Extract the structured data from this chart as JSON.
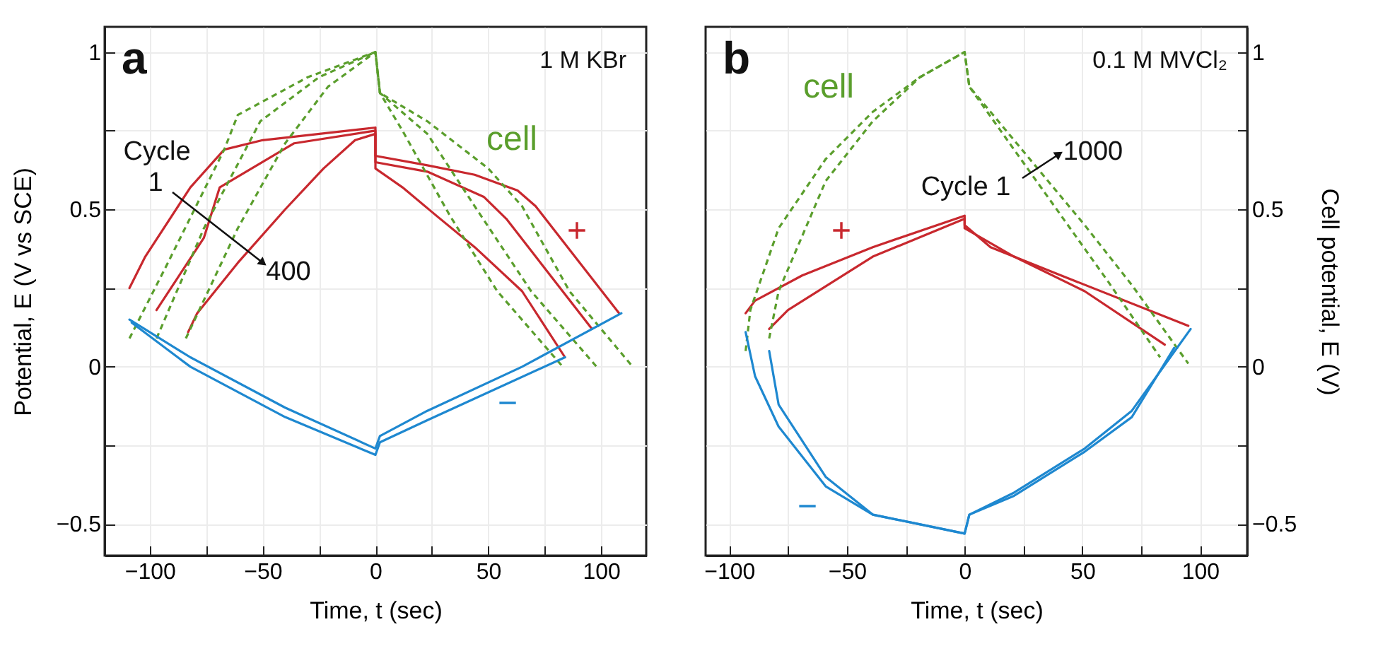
{
  "chart_data": [
    {
      "type": "line",
      "title": "a",
      "xlabel": "Time, t (sec)",
      "ylabel": "Potential, E (V vs SCE)",
      "xlim": [
        -120,
        120
      ],
      "xticks": [
        -100,
        {
          "value": -75,
          "label": null
        },
        -50,
        {
          "value": -25,
          "label": null
        },
        0,
        {
          "value": 25,
          "label": null
        },
        50,
        {
          "value": 75,
          "label": null
        },
        100
      ],
      "ylim": [
        -0.6,
        1.08
      ],
      "yticks": [
        -0.5,
        {
          "value": -0.25,
          "label": null
        },
        0,
        {
          "value": 0.25,
          "label": null
        },
        0.5,
        {
          "value": 0.75,
          "label": null
        },
        1
      ],
      "grid": true,
      "series": [
        {
          "name": "+",
          "color": "#c8282e",
          "x": [
            -109,
            -102,
            -82,
            -67,
            -50,
            0,
            0,
            23,
            44,
            63,
            71,
            108
          ],
          "values": [
            0.25,
            0.35,
            0.57,
            0.69,
            0.72,
            0.76,
            0.67,
            0.64,
            0.61,
            0.56,
            0.51,
            0.17
          ]
        },
        {
          "color": "#c8282e",
          "x": [
            -97,
            -76,
            -69,
            -36,
            0,
            0,
            23,
            48,
            58,
            96
          ],
          "values": [
            0.18,
            0.41,
            0.57,
            0.71,
            0.75,
            0.65,
            0.62,
            0.54,
            0.47,
            0.12
          ]
        },
        {
          "color": "#c8282e",
          "x": [
            -83,
            -79,
            -61,
            -40,
            -23,
            -9,
            0,
            0,
            12,
            27,
            44,
            65,
            84
          ],
          "values": [
            0.11,
            0.17,
            0.33,
            0.5,
            0.63,
            0.72,
            0.74,
            0.63,
            0.57,
            0.48,
            0.38,
            0.24,
            0.03
          ]
        },
        {
          "name": "cell",
          "color": "#5a9e2c",
          "line_style": "dashed",
          "x": [
            -109,
            -92,
            -67,
            -61,
            -30,
            0,
            2,
            23,
            50,
            65,
            86,
            114
          ],
          "values": [
            0.09,
            0.33,
            0.69,
            0.8,
            0.92,
            1.0,
            0.87,
            0.78,
            0.63,
            0.51,
            0.24,
            0.0
          ]
        },
        {
          "color": "#5a9e2c",
          "line_style": "dashed",
          "x": [
            -97,
            -76,
            -51,
            -25,
            0,
            2,
            23,
            44,
            69,
            98
          ],
          "values": [
            0.09,
            0.44,
            0.78,
            0.92,
            1.0,
            0.87,
            0.74,
            0.51,
            0.24,
            0.0
          ]
        },
        {
          "color": "#5a9e2c",
          "line_style": "dashed",
          "x": [
            -84,
            -61,
            -40,
            -21,
            0,
            2,
            12,
            33,
            54,
            83
          ],
          "values": [
            0.09,
            0.44,
            0.71,
            0.89,
            1.0,
            0.87,
            0.75,
            0.48,
            0.24,
            0.0
          ]
        },
        {
          "name": "−",
          "color": "#1e88d0",
          "x": [
            -109,
            -82,
            -40,
            0,
            2,
            23,
            65,
            109
          ],
          "values": [
            0.15,
            0.03,
            -0.13,
            -0.26,
            -0.22,
            -0.14,
            0.0,
            0.17
          ]
        },
        {
          "color": "#1e88d0",
          "x": [
            -108,
            -82,
            -40,
            0,
            2,
            23,
            84
          ],
          "values": [
            0.14,
            0.0,
            -0.16,
            -0.28,
            -0.24,
            -0.17,
            0.03
          ]
        }
      ],
      "annotations": [
        "1 M KBr",
        "Cycle",
        "1",
        "400"
      ]
    },
    {
      "type": "line",
      "title": "b",
      "xlabel": "Time, t (sec)",
      "y2label": "Cell potential, E (V)",
      "xlim": [
        -110,
        120
      ],
      "xticks": [
        -100,
        {
          "value": -75,
          "label": null
        },
        -50,
        {
          "value": -25,
          "label": null
        },
        0,
        {
          "value": 25,
          "label": null
        },
        50,
        {
          "value": 75,
          "label": null
        },
        100
      ],
      "y2lim": [
        -0.6,
        1.08
      ],
      "y2ticks": [
        -0.5,
        {
          "value": -0.25,
          "label": null
        },
        0,
        {
          "value": 0.25,
          "label": null
        },
        0.5,
        {
          "value": 0.75,
          "label": null
        },
        1
      ],
      "grid": true,
      "series": [
        {
          "name": "+",
          "axis": "y2",
          "color": "#c8282e",
          "x": [
            -93,
            -89,
            -69,
            -39,
            0,
            0,
            11,
            41,
            95
          ],
          "values": [
            0.17,
            0.21,
            0.29,
            0.38,
            0.48,
            0.45,
            0.38,
            0.29,
            0.13
          ]
        },
        {
          "axis": "y2",
          "color": "#c8282e",
          "x": [
            -83,
            -75,
            -39,
            0,
            0,
            21,
            51,
            85
          ],
          "values": [
            0.12,
            0.18,
            0.35,
            0.47,
            0.44,
            0.35,
            0.24,
            0.07
          ]
        },
        {
          "name": "cell",
          "axis": "y2",
          "color": "#5a9e2c",
          "line_style": "dashed",
          "x": [
            -93,
            -91,
            -79,
            -59,
            -39,
            -19,
            0,
            2,
            11,
            31,
            51,
            71,
            95
          ],
          "values": [
            0.05,
            0.18,
            0.44,
            0.66,
            0.81,
            0.92,
            1.0,
            0.89,
            0.81,
            0.63,
            0.45,
            0.26,
            0.01
          ]
        },
        {
          "axis": "y2",
          "color": "#5a9e2c",
          "line_style": "dashed",
          "x": [
            -83,
            -79,
            -59,
            -39,
            -19,
            0,
            2,
            21,
            41,
            61,
            83
          ],
          "values": [
            0.09,
            0.24,
            0.59,
            0.78,
            0.92,
            1.0,
            0.89,
            0.69,
            0.48,
            0.27,
            0.03
          ]
        },
        {
          "name": "−",
          "axis": "y2",
          "color": "#1e88d0",
          "x": [
            -93,
            -89,
            -79,
            -59,
            -39,
            0,
            2,
            21,
            51,
            71,
            96
          ],
          "values": [
            0.11,
            -0.03,
            -0.19,
            -0.38,
            -0.47,
            -0.53,
            -0.47,
            -0.4,
            -0.26,
            -0.14,
            0.12
          ]
        },
        {
          "axis": "y2",
          "color": "#1e88d0",
          "x": [
            -83,
            -79,
            -59,
            -39,
            0,
            2,
            21,
            51,
            71,
            89
          ],
          "values": [
            0.05,
            -0.12,
            -0.35,
            -0.47,
            -0.53,
            -0.47,
            -0.41,
            -0.27,
            -0.16,
            0.06
          ]
        }
      ],
      "annotations": [
        "0.1 M MVCl₂",
        "Cycle 1",
        "1000"
      ]
    }
  ]
}
